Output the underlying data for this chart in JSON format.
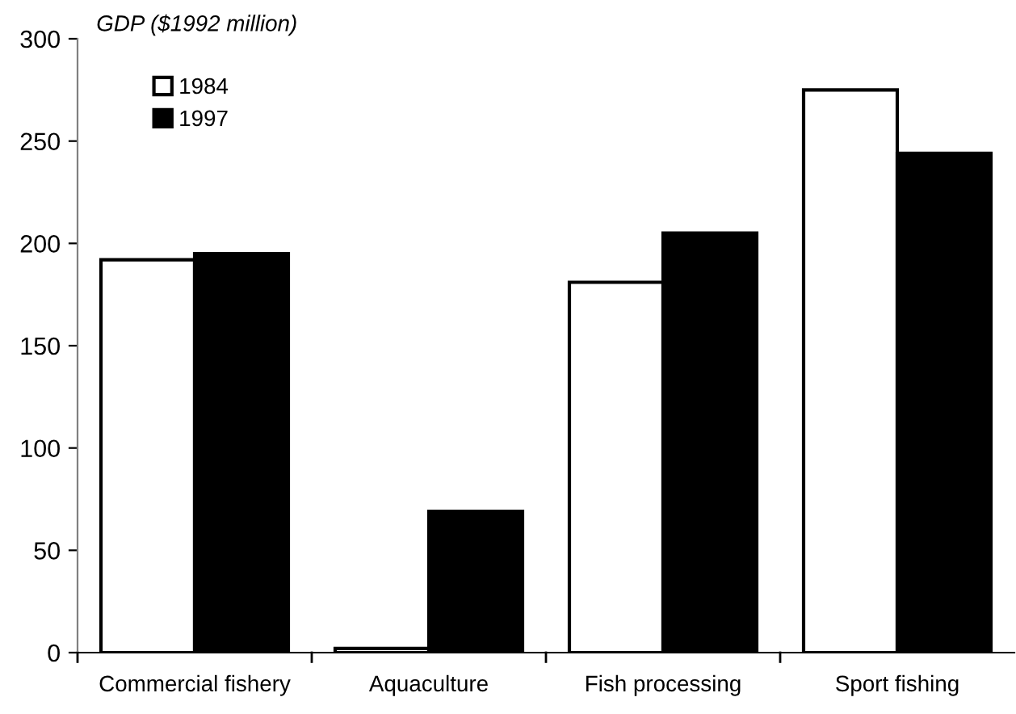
{
  "chart_data": {
    "type": "bar",
    "ylabel": "GDP ($1992 million)",
    "categories": [
      "Commercial fishery",
      "Aquaculture",
      "Fish processing",
      "Sport fishing"
    ],
    "series": [
      {
        "name": "1984",
        "color": "#ffffff",
        "values": [
          192,
          2,
          181,
          275
        ]
      },
      {
        "name": "1997",
        "color": "#000000",
        "values": [
          195,
          69,
          205,
          244
        ]
      }
    ],
    "ylim": [
      0,
      300
    ],
    "yticks": [
      0,
      50,
      100,
      150,
      200,
      250,
      300
    ],
    "grid": false,
    "legend": "top left"
  }
}
